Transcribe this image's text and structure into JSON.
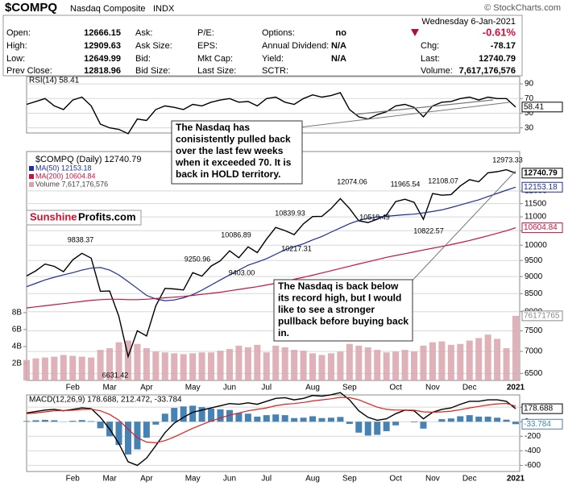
{
  "quote": {
    "symbol": "$COMPQ",
    "name": "Nasdaq Composite",
    "exchange": "INDX",
    "watermark": "© StockCharts.com",
    "date": "Wednesday  6-Jan-2021",
    "change_pct": "-0.61%",
    "columns": [
      [
        [
          "Open:",
          "12666.15"
        ],
        [
          "High:",
          "12909.63"
        ],
        [
          "Low:",
          "12649.99"
        ],
        [
          "Prev Close:",
          "12818.96"
        ]
      ],
      [
        [
          "Ask:"
        ],
        [
          "Ask Size:"
        ],
        [
          "Bid:"
        ],
        [
          "Bid Size:"
        ]
      ],
      [
        [
          "P/E:"
        ],
        [
          "EPS:"
        ],
        [
          "Mkt Cap:"
        ],
        [
          "Last Size:"
        ]
      ],
      [
        [
          "Options:",
          "no"
        ],
        [
          "Annual Dividend:",
          "N/A"
        ],
        [
          "Yield:",
          "N/A"
        ],
        [
          "SCTR:"
        ]
      ],
      [
        [
          "Chg:",
          "-78.17"
        ],
        [
          "Last:",
          "12740.79"
        ],
        [
          "Volume:",
          "7,617,176,576"
        ]
      ]
    ]
  },
  "logo": [
    "Sunshine",
    "Profits.com"
  ],
  "notes": [
    {
      "lines": [
        "The Nasdaq has",
        "conisistently pulled back",
        "over the last few weeks",
        "when it exceeded 70. It is",
        "back in HOLD territory."
      ]
    },
    {
      "lines": [
        "The Nasdaq is back below",
        "its record high, but I would",
        "like to see a stronger",
        "pullback before buying back",
        "in."
      ]
    }
  ],
  "chart_data": [
    {
      "type": "line",
      "title": "RSI(14) 58.41",
      "ylim": [
        23,
        100
      ],
      "yticks": [
        30,
        50,
        70,
        90
      ],
      "grid": true,
      "series": [
        {
          "name": "RSI(14)",
          "color": "#000000",
          "values": [
            62,
            66,
            70,
            60,
            55,
            68,
            72,
            60,
            35,
            30,
            28,
            22,
            42,
            40,
            55,
            60,
            58,
            55,
            62,
            60,
            65,
            68,
            70,
            65,
            66,
            60,
            70,
            72,
            65,
            62,
            70,
            75,
            72,
            74,
            78,
            55,
            45,
            42,
            48,
            52,
            60,
            62,
            58,
            45,
            60,
            65,
            66,
            70,
            72,
            68,
            72,
            70,
            70,
            58.41
          ]
        }
      ]
    },
    {
      "type": "line",
      "title": "$COMPQ (Daily) 12740.79",
      "log_scale": true,
      "grid": true,
      "categories": [
        null,
        null,
        null,
        null,
        null,
        "Feb",
        null,
        null,
        null,
        "Mar",
        null,
        null,
        null,
        "Apr",
        null,
        null,
        null,
        null,
        "May",
        null,
        null,
        null,
        "Jun",
        null,
        null,
        null,
        "Jul",
        null,
        null,
        null,
        null,
        "Aug",
        null,
        null,
        null,
        "Sep",
        null,
        null,
        null,
        null,
        "Oct",
        null,
        null,
        null,
        "Nov",
        null,
        null,
        null,
        "Dec",
        null,
        null,
        null,
        null,
        "2021"
      ],
      "ylim": [
        6350,
        13700
      ],
      "yticks": [
        6500,
        7000,
        7500,
        8000,
        8500,
        9000,
        9500,
        10000,
        10500,
        11000,
        11500,
        12000
      ],
      "y2lim": [
        0,
        27000000000.0
      ],
      "y2ticks": [
        {
          "value": 2000000000.0,
          "label": "2B"
        },
        {
          "value": 4000000000.0,
          "label": "4B"
        },
        {
          "value": 6000000000.0,
          "label": "6B"
        },
        {
          "value": 8000000000.0,
          "label": "8B"
        }
      ],
      "annotations": [
        "9838.37",
        "6631.42",
        "9250.96",
        "9403.00",
        "10086.89",
        "10217.31",
        "10839.93",
        "12074.06",
        "10519.49",
        "11965.54",
        "12108.07",
        "10822.57",
        "12973.33"
      ],
      "series": [
        {
          "name": "$COMPQ",
          "color": "#000000",
          "values": [
            9020,
            9178,
            9388,
            9315,
            9150,
            9520,
            9731,
            9576,
            8567,
            8575,
            7875,
            6880,
            7502,
            7373,
            8153,
            8650,
            8634,
            8605,
            9121,
            9014,
            9325,
            9490,
            9815,
            9589,
            9946,
            9757,
            10207,
            10617,
            10503,
            10363,
            10745,
            11010,
            11019,
            11311,
            11696,
            11313,
            10854,
            10793,
            10913,
            11075,
            11580,
            11671,
            11548,
            10911,
            11895,
            11829,
            11855,
            12205,
            12464,
            12377,
            12755,
            12804,
            12888,
            12740.79
          ]
        },
        {
          "name": "MA(50) 12153.18",
          "color": "#1f2e9c",
          "values": [
            8700,
            8800,
            8900,
            8980,
            9050,
            9120,
            9200,
            9260,
            9280,
            9200,
            9050,
            8850,
            8650,
            8450,
            8350,
            8300,
            8320,
            8380,
            8470,
            8600,
            8750,
            8900,
            9050,
            9200,
            9350,
            9450,
            9560,
            9700,
            9850,
            9950,
            10050,
            10180,
            10300,
            10450,
            10600,
            10750,
            10870,
            10950,
            11000,
            11020,
            11050,
            11080,
            11100,
            11150,
            11200,
            11260,
            11350,
            11450,
            11550,
            11650,
            11780,
            11900,
            12030,
            12153.18
          ]
        },
        {
          "name": "MA(200) 10604.84",
          "color": "#c8143c",
          "values": [
            8100,
            8130,
            8160,
            8190,
            8220,
            8250,
            8280,
            8310,
            8330,
            8340,
            8340,
            8330,
            8330,
            8340,
            8360,
            8380,
            8400,
            8420,
            8450,
            8480,
            8510,
            8540,
            8580,
            8620,
            8660,
            8700,
            8750,
            8800,
            8860,
            8920,
            8980,
            9040,
            9110,
            9180,
            9250,
            9320,
            9390,
            9460,
            9530,
            9600,
            9660,
            9720,
            9780,
            9840,
            9900,
            9960,
            10020,
            10090,
            10160,
            10240,
            10320,
            10410,
            10500,
            10604.84
          ]
        },
        {
          "name": "Volume 7,617,176,576",
          "color": "#d9a3ab",
          "axis": "y2",
          "values": [
            2400000000.0,
            2600000000.0,
            2700000000.0,
            2800000000.0,
            3000000000.0,
            2900000000.0,
            2800000000.0,
            2700000000.0,
            3600000000.0,
            3800000000.0,
            4500000000.0,
            4700000000.0,
            4300000000.0,
            3800000000.0,
            3400000000.0,
            3300000000.0,
            3200000000.0,
            3100000000.0,
            3200000000.0,
            3300000000.0,
            3300000000.0,
            3500000000.0,
            3700000000.0,
            4100000000.0,
            3900000000.0,
            4200000000.0,
            3300000000.0,
            4100000000.0,
            3900000000.0,
            3600000000.0,
            3500000000.0,
            3200000000.0,
            3000000000.0,
            3200000000.0,
            3400000000.0,
            4300000000.0,
            4100000000.0,
            3900000000.0,
            3600000000.0,
            3300000000.0,
            3400000000.0,
            3600000000.0,
            3400000000.0,
            4100000000.0,
            4500000000.0,
            4600000000.0,
            4200000000.0,
            4300000000.0,
            4700000000.0,
            5000000000.0,
            5400000000.0,
            4900000000.0,
            3800000000.0,
            7617176576
          ]
        }
      ]
    },
    {
      "type": "line",
      "title": "MACD(12,26,9) 178.688, 212.472, -33.784",
      "categories": [
        null,
        null,
        null,
        null,
        null,
        "Feb",
        null,
        null,
        null,
        "Mar",
        null,
        null,
        null,
        "Apr",
        null,
        null,
        null,
        null,
        "May",
        null,
        null,
        null,
        "Jun",
        null,
        null,
        null,
        "Jul",
        null,
        null,
        null,
        null,
        "Aug",
        null,
        null,
        null,
        "Sep",
        null,
        null,
        null,
        null,
        "Oct",
        null,
        null,
        null,
        "Nov",
        null,
        null,
        null,
        "Dec",
        null,
        null,
        null,
        null,
        "2021"
      ],
      "ylim": [
        -684,
        368
      ],
      "yticks": [
        -600,
        -400,
        -200,
        0,
        200
      ],
      "grid": true,
      "series": [
        {
          "name": "MACD",
          "color": "#000000",
          "values": [
            120,
            140,
            160,
            170,
            150,
            170,
            190,
            180,
            60,
            -100,
            -300,
            -550,
            -600,
            -500,
            -330,
            -150,
            -20,
            60,
            130,
            160,
            190,
            220,
            250,
            240,
            260,
            240,
            280,
            320,
            330,
            300,
            320,
            360,
            350,
            370,
            400,
            300,
            150,
            60,
            20,
            40,
            110,
            160,
            150,
            40,
            130,
            170,
            190,
            240,
            280,
            280,
            300,
            300,
            280,
            178.688
          ]
        },
        {
          "name": "Signal",
          "color": "#e0201b",
          "values": [
            110,
            120,
            135,
            150,
            152,
            158,
            168,
            172,
            150,
            100,
            20,
            -100,
            -220,
            -280,
            -290,
            -260,
            -210,
            -150,
            -90,
            -40,
            10,
            50,
            90,
            120,
            150,
            170,
            190,
            220,
            240,
            250,
            265,
            285,
            300,
            315,
            335,
            330,
            300,
            250,
            200,
            170,
            160,
            160,
            158,
            135,
            130,
            135,
            145,
            165,
            190,
            210,
            230,
            245,
            252,
            212.472
          ]
        },
        {
          "name": "Histogram",
          "color": "#4682b4",
          "type": "bar",
          "values": [
            10,
            20,
            25,
            20,
            -2,
            12,
            22,
            8,
            -90,
            -200,
            -320,
            -450,
            -380,
            -220,
            -40,
            110,
            190,
            210,
            220,
            200,
            180,
            170,
            160,
            120,
            110,
            70,
            90,
            100,
            90,
            50,
            55,
            75,
            50,
            55,
            65,
            -30,
            -150,
            -190,
            -180,
            -130,
            -50,
            0,
            -8,
            -95,
            0,
            35,
            45,
            75,
            90,
            70,
            70,
            55,
            28,
            -33.784
          ]
        }
      ]
    }
  ]
}
